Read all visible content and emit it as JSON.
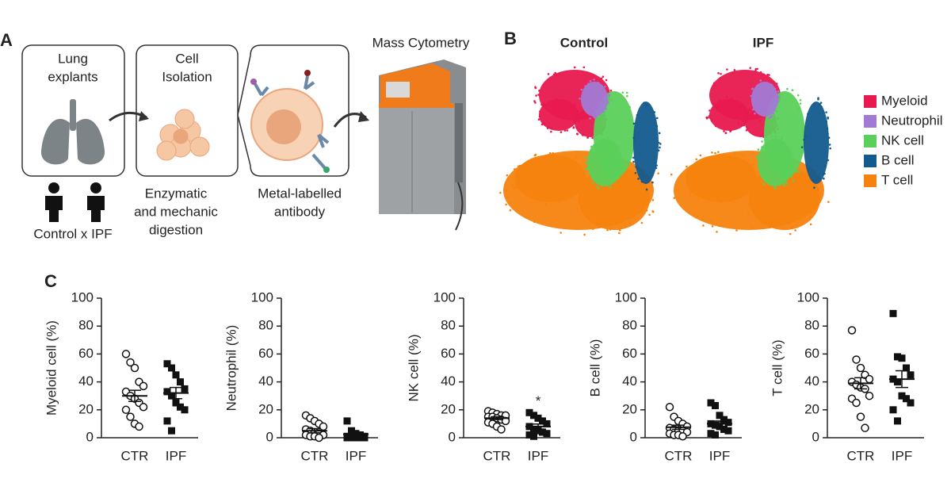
{
  "panel_a": {
    "label": "A",
    "box1": [
      "Lung",
      "explants"
    ],
    "box2": [
      "Cell",
      "Isolation"
    ],
    "instrument": "Mass Cytometry",
    "groups": "Control x IPF",
    "digestion": [
      "Enzymatic",
      "and mechanic",
      "digestion"
    ],
    "antibody": [
      "Metal-labelled",
      "antibody"
    ]
  },
  "panel_b": {
    "label": "B",
    "maps": [
      "Control",
      "IPF"
    ],
    "legend": [
      {
        "name": "Myeloid",
        "color": "#e8194f"
      },
      {
        "name": "Neutrophil",
        "color": "#a27ad6"
      },
      {
        "name": "NK cell",
        "color": "#5ad05a"
      },
      {
        "name": "B cell",
        "color": "#135a8e"
      },
      {
        "name": "T cell",
        "color": "#f7830f"
      }
    ]
  },
  "panel_c": {
    "label": "C"
  },
  "chart_data": [
    {
      "type": "dotplot",
      "ylabel": "Myeloid cell (%)",
      "categories": [
        "CTR",
        "IPF"
      ],
      "values": [
        [
          60,
          54,
          50,
          40,
          37,
          33,
          30,
          28,
          25,
          22,
          20,
          15,
          10,
          8
        ],
        [
          53,
          50,
          45,
          40,
          35,
          33,
          30,
          25,
          22,
          20,
          12,
          5
        ]
      ],
      "means": [
        30,
        32
      ],
      "sems": [
        4,
        4
      ],
      "markers": [
        "open-circle",
        "filled-square"
      ],
      "ylim": [
        0,
        100
      ],
      "yticks": [
        0,
        20,
        40,
        60,
        80,
        100
      ]
    },
    {
      "type": "dotplot",
      "ylabel": "Neutrophil (%)",
      "categories": [
        "CTR",
        "IPF"
      ],
      "values": [
        [
          16,
          14,
          12,
          10,
          8,
          6,
          5,
          4,
          3,
          2,
          2,
          1,
          1,
          0
        ],
        [
          12,
          5,
          3,
          2,
          1,
          1,
          1,
          0,
          0,
          0,
          0,
          0
        ]
      ],
      "means": [
        5,
        2.5
      ],
      "sems": [
        1.5,
        1
      ],
      "markers": [
        "open-circle",
        "filled-square"
      ],
      "ylim": [
        0,
        100
      ],
      "yticks": [
        0,
        20,
        40,
        60,
        80,
        100
      ]
    },
    {
      "type": "dotplot",
      "ylabel": "NK cell (%)",
      "categories": [
        "CTR",
        "IPF"
      ],
      "values": [
        [
          19,
          18,
          17,
          16,
          16,
          15,
          15,
          14,
          13,
          12,
          11,
          10,
          8,
          6
        ],
        [
          18,
          16,
          14,
          12,
          10,
          8,
          6,
          5,
          4,
          3,
          2,
          1
        ]
      ],
      "means": [
        14,
        8
      ],
      "sems": [
        1,
        1.8
      ],
      "markers": [
        "open-circle",
        "filled-square"
      ],
      "annotation": "*",
      "annotation_category": 1,
      "ylim": [
        0,
        100
      ],
      "yticks": [
        0,
        20,
        40,
        60,
        80,
        100
      ]
    },
    {
      "type": "dotplot",
      "ylabel": "B cell (%)",
      "categories": [
        "CTR",
        "IPF"
      ],
      "values": [
        [
          22,
          15,
          12,
          10,
          8,
          7,
          6,
          5,
          5,
          4,
          3,
          2,
          2,
          1
        ],
        [
          25,
          23,
          16,
          13,
          11,
          10,
          9,
          8,
          6,
          5,
          3,
          2
        ]
      ],
      "means": [
        7.5,
        10
      ],
      "sems": [
        1.5,
        2
      ],
      "markers": [
        "open-circle",
        "filled-square"
      ],
      "ylim": [
        0,
        100
      ],
      "yticks": [
        0,
        20,
        40,
        60,
        80,
        100
      ]
    },
    {
      "type": "dotplot",
      "ylabel": "T cell (%)",
      "categories": [
        "CTR",
        "IPF"
      ],
      "values": [
        [
          77,
          56,
          50,
          45,
          42,
          40,
          38,
          36,
          35,
          30,
          28,
          25,
          15,
          7
        ],
        [
          89,
          58,
          57,
          50,
          45,
          42,
          40,
          30,
          28,
          25,
          20,
          12
        ]
      ],
      "means": [
        39,
        42
      ],
      "sems": [
        4,
        6
      ],
      "markers": [
        "open-circle",
        "filled-square"
      ],
      "ylim": [
        0,
        100
      ],
      "yticks": [
        0,
        20,
        40,
        60,
        80,
        100
      ]
    }
  ]
}
